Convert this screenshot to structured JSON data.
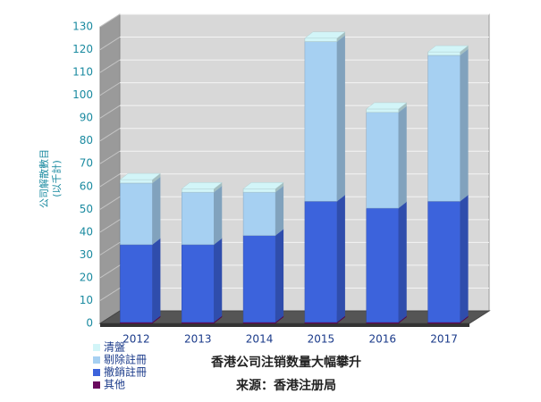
{
  "chart_data": {
    "type": "bar3d-stacked",
    "title": "香港公司注销数量大幅攀升",
    "subtitle": "来源：香港注册局",
    "y_label": [
      "公司解散數目",
      "(以千計)"
    ],
    "categories": [
      "2012",
      "2013",
      "2014",
      "2015",
      "2016",
      "2017"
    ],
    "series": [
      {
        "name": "其他",
        "color": "#6a0a5e",
        "values": [
          0.5,
          0.5,
          0.5,
          0.5,
          0.5,
          0.5
        ]
      },
      {
        "name": "撤銷註冊",
        "color": "#3c63dc",
        "values": [
          34,
          34,
          38,
          53,
          50,
          53
        ]
      },
      {
        "name": "剔除註冊",
        "color": "#a6d0f2",
        "values": [
          27,
          23,
          19,
          70,
          42,
          64
        ]
      },
      {
        "name": "清盤",
        "color": "#d2f5f8",
        "values": [
          1.5,
          1.5,
          1.5,
          1.5,
          1.5,
          1.5
        ]
      }
    ],
    "ylim": [
      0,
      130
    ],
    "yticks": [
      0,
      10,
      20,
      30,
      40,
      50,
      60,
      70,
      80,
      90,
      100,
      110,
      120,
      130
    ],
    "grid": true
  }
}
